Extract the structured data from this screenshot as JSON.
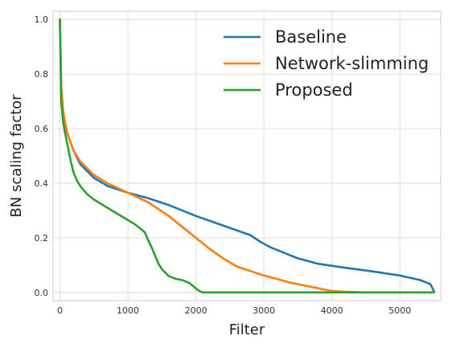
{
  "chart_data": {
    "type": "line",
    "title": "",
    "xlabel": "Filter",
    "ylabel": "BN scaling factor",
    "xlim": [
      -100,
      5600
    ],
    "ylim": [
      -0.03,
      1.03
    ],
    "xticks": [
      0,
      1000,
      2000,
      3000,
      4000,
      5000
    ],
    "yticks": [
      0.0,
      0.2,
      0.4,
      0.6,
      0.8,
      1.0
    ],
    "xtick_labels": [
      "0",
      "1000",
      "2000",
      "3000",
      "4000",
      "5000"
    ],
    "ytick_labels": [
      "0.0",
      "0.2",
      "0.4",
      "0.6",
      "0.8",
      "1.0"
    ],
    "grid": true,
    "legend_position": "top-right",
    "series": [
      {
        "name": "Baseline",
        "color": "#1f77b4",
        "x": [
          0,
          20,
          50,
          100,
          200,
          300,
          500,
          700,
          1000,
          1300,
          1600,
          2000,
          2400,
          2800,
          2950,
          3100,
          3500,
          3800,
          4200,
          4600,
          5000,
          5300,
          5450,
          5500
        ],
        "y": [
          1.0,
          0.75,
          0.66,
          0.59,
          0.52,
          0.47,
          0.42,
          0.39,
          0.365,
          0.345,
          0.32,
          0.28,
          0.245,
          0.21,
          0.185,
          0.165,
          0.125,
          0.105,
          0.09,
          0.077,
          0.062,
          0.045,
          0.03,
          0.005
        ]
      },
      {
        "name": "Network-slimming",
        "color": "#ff7f0e",
        "x": [
          0,
          20,
          50,
          100,
          200,
          300,
          500,
          700,
          1000,
          1300,
          1600,
          1800,
          2000,
          2200,
          2400,
          2600,
          3000,
          3400,
          3800,
          4000,
          4200,
          4500,
          5000,
          5500
        ],
        "y": [
          1.0,
          0.75,
          0.66,
          0.59,
          0.52,
          0.48,
          0.43,
          0.4,
          0.365,
          0.33,
          0.28,
          0.24,
          0.2,
          0.16,
          0.125,
          0.095,
          0.062,
          0.035,
          0.015,
          0.005,
          0.002,
          0.0,
          0.0,
          0.0
        ]
      },
      {
        "name": "Proposed",
        "color": "#2ca02c",
        "x": [
          0,
          20,
          50,
          80,
          120,
          160,
          200,
          250,
          300,
          400,
          500,
          700,
          900,
          1100,
          1250,
          1300,
          1350,
          1400,
          1450,
          1500,
          1600,
          1700,
          1800,
          1900,
          2000,
          2050,
          2100,
          3000,
          4000,
          5500
        ],
        "y": [
          1.0,
          0.7,
          0.62,
          0.58,
          0.53,
          0.48,
          0.44,
          0.41,
          0.39,
          0.36,
          0.34,
          0.31,
          0.28,
          0.25,
          0.22,
          0.19,
          0.165,
          0.135,
          0.105,
          0.085,
          0.06,
          0.05,
          0.045,
          0.035,
          0.015,
          0.005,
          0.0,
          0.0,
          0.0,
          0.0
        ]
      }
    ]
  }
}
